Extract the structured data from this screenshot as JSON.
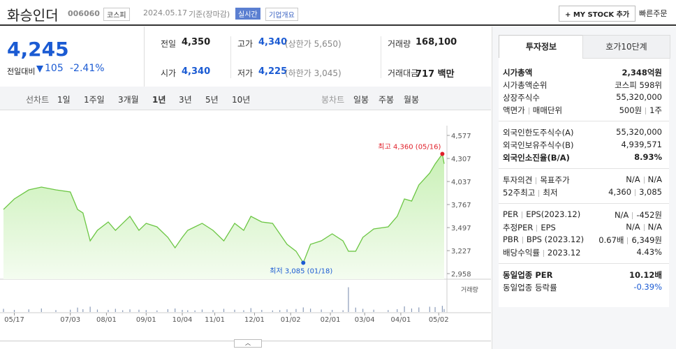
{
  "header": {
    "name": "화승인더",
    "code": "006060",
    "market": "코스피",
    "date": "2024.05.17",
    "basis": "기준(장마감)",
    "realtime": "실시간",
    "overview": "기업개요",
    "mystock": "+ MY STOCK 추가",
    "quick_order": "빠른주문"
  },
  "price": {
    "current": "4,245",
    "change_label": "전일대비",
    "change": "105",
    "change_pct": "-2.41%"
  },
  "quotes": [
    {
      "label": "전일",
      "value": "4,350"
    },
    {
      "label": "고가",
      "value": "4,340",
      "note": "(상한가 5,650)"
    },
    {
      "label": "거래량",
      "value": "168,100"
    },
    {
      "label": "시가",
      "value": "4,340"
    },
    {
      "label": "저가",
      "value": "4,225",
      "note": "(하한가 3,045)"
    },
    {
      "label": "거래대금",
      "value": "717 백만"
    }
  ],
  "tabs": {
    "line_label": "선차트",
    "line": [
      "1일",
      "1주일",
      "3개월",
      "1년",
      "3년",
      "5년",
      "10년"
    ],
    "selected": 3,
    "candle_label": "봉차트",
    "candle": [
      "일봉",
      "주봉",
      "월봉"
    ]
  },
  "chart_data": {
    "type": "line",
    "color": "#6cc644",
    "x": [
      0,
      6,
      14,
      21,
      29,
      37,
      41,
      44,
      48,
      52,
      58,
      62,
      66,
      70,
      75,
      79,
      85,
      91,
      95,
      99,
      102,
      106,
      110,
      116,
      122,
      128,
      133,
      137,
      143,
      149,
      153,
      157,
      162,
      166,
      170,
      176,
      182,
      188,
      191,
      195,
      199,
      205,
      213,
      218,
      222,
      226,
      230,
      236,
      239,
      243,
      244
    ],
    "values": [
      3710,
      3833,
      3939,
      3972,
      3939,
      3915,
      3710,
      3669,
      3342,
      3465,
      3563,
      3465,
      3547,
      3629,
      3465,
      3547,
      3506,
      3383,
      3261,
      3383,
      3465,
      3506,
      3547,
      3465,
      3342,
      3547,
      3465,
      3629,
      3563,
      3547,
      3424,
      3301,
      3220,
      3085,
      3301,
      3342,
      3424,
      3342,
      3220,
      3220,
      3383,
      3481,
      3506,
      3629,
      3833,
      3808,
      3997,
      4136,
      4242,
      4360,
      4245
    ],
    "xlim": [
      0,
      244
    ],
    "ylim": [
      2958,
      4577
    ],
    "yticks": [
      {
        "value": 4577,
        "label": "4,577"
      },
      {
        "value": 4307,
        "label": "4,307"
      },
      {
        "value": 4037,
        "label": "4,037"
      },
      {
        "value": 3767,
        "label": "3,767"
      },
      {
        "value": 3497,
        "label": "3,497"
      },
      {
        "value": 3227,
        "label": "3,227"
      },
      {
        "value": 2958,
        "label": "2,958"
      }
    ],
    "xticks": [
      {
        "value": 6,
        "label": "05/17"
      },
      {
        "value": 37,
        "label": "07/03"
      },
      {
        "value": 57,
        "label": "08/01"
      },
      {
        "value": 79,
        "label": "09/01"
      },
      {
        "value": 99,
        "label": "10/04"
      },
      {
        "value": 117,
        "label": "11/01"
      },
      {
        "value": 139,
        "label": "12/01"
      },
      {
        "value": 159,
        "label": "01/02"
      },
      {
        "value": 181,
        "label": "02/01"
      },
      {
        "value": 200,
        "label": "03/04"
      },
      {
        "value": 220,
        "label": "04/01"
      },
      {
        "value": 241,
        "label": "05/02"
      }
    ],
    "annotations": [
      {
        "text": "최고 4,360 (05/16)",
        "x": 243,
        "y": 4360,
        "color": "#e0202a"
      },
      {
        "text": "최저 3,085 (01/18)",
        "x": 166,
        "y": 3085,
        "color": "#1b5bd3"
      }
    ],
    "volume": {
      "label": "거래량",
      "color": "#8a9bb8",
      "ylim": [
        0,
        1500000
      ],
      "values": [
        180000,
        120000,
        150000,
        200000,
        110000,
        130000,
        250000,
        160000,
        300000,
        140000,
        120000,
        180000,
        100000,
        150000,
        130000,
        110000,
        90000,
        160000,
        200000,
        120000,
        100000,
        90000,
        140000,
        110000,
        180000,
        130000,
        100000,
        220000,
        120000,
        90000,
        110000,
        150000,
        170000,
        260000,
        190000,
        140000,
        120000,
        100000,
        1400000,
        250000,
        180000,
        130000,
        110000,
        160000,
        320000,
        200000,
        260000,
        300000,
        280000,
        350000,
        168100
      ]
    }
  },
  "info": {
    "tabs": [
      "투자정보",
      "호가10단계"
    ],
    "sections": [
      [
        {
          "label": [
            "시가총액"
          ],
          "value": [
            "2,348억원"
          ],
          "bold": true
        },
        {
          "label": [
            "시가총액순위"
          ],
          "value": [
            "코스피 598위"
          ]
        },
        {
          "label": [
            "상장주식수"
          ],
          "value": [
            "55,320,000"
          ]
        },
        {
          "label": [
            "액면가",
            "매매단위"
          ],
          "value": [
            "500원",
            "1주"
          ]
        }
      ],
      [
        {
          "label": [
            "외국인한도주식수(A)"
          ],
          "value": [
            "55,320,000"
          ]
        },
        {
          "label": [
            "외국인보유주식수(B)"
          ],
          "value": [
            "4,939,571"
          ]
        },
        {
          "label": [
            "외국인소진율(B/A)"
          ],
          "value": [
            "8.93%"
          ],
          "bold": true
        }
      ],
      [
        {
          "label": [
            "투자의견",
            "목표주가"
          ],
          "value": [
            "N/A",
            "N/A"
          ]
        },
        {
          "label": [
            "52주최고",
            "최저"
          ],
          "value": [
            "4,360",
            "3,085"
          ]
        }
      ],
      [
        {
          "label": [
            "PER",
            "EPS(2023.12)"
          ],
          "value": [
            "N/A",
            "-452원"
          ]
        },
        {
          "label": [
            "추정PER",
            "EPS"
          ],
          "value": [
            "N/A",
            "N/A"
          ]
        },
        {
          "label": [
            "PBR",
            "BPS (2023.12)"
          ],
          "value": [
            "0.67배",
            "6,349원"
          ]
        },
        {
          "label": [
            "배당수익률",
            "2023.12"
          ],
          "value": [
            "4.43%"
          ]
        }
      ],
      [
        {
          "label": [
            "동일업종 PER"
          ],
          "value": [
            "10.12배"
          ],
          "bold": true
        },
        {
          "label": [
            "동일업종 등락률"
          ],
          "value": [
            "-0.39%"
          ],
          "blue": true
        }
      ]
    ]
  }
}
